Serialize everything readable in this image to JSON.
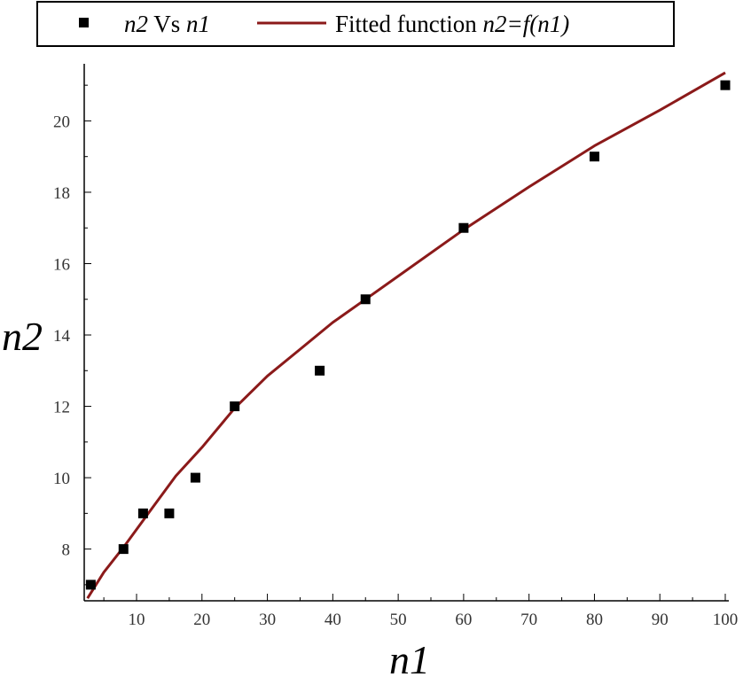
{
  "chart_data": {
    "type": "scatter",
    "xlabel": "n1",
    "ylabel": "n2",
    "xlim": [
      2,
      100
    ],
    "ylim": [
      6.55,
      21.6
    ],
    "xticks": [
      10,
      20,
      30,
      40,
      50,
      60,
      70,
      80,
      90,
      100
    ],
    "yticks": [
      8,
      10,
      12,
      14,
      16,
      18,
      20
    ],
    "grid": false,
    "legend_position": "top",
    "legend": {
      "points": {
        "symbol_label": "n2",
        "middle": " Vs ",
        "second": "n1"
      },
      "line": {
        "prefix": "Fitted function ",
        "formula": "n2=f(n1)"
      }
    },
    "series": [
      {
        "name": "n2 Vs n1",
        "kind": "points",
        "color": "#000000",
        "x": [
          3,
          8,
          11,
          15,
          19,
          25,
          38,
          45,
          60,
          80,
          100
        ],
        "y": [
          7,
          8,
          9,
          9,
          10,
          12,
          13,
          15,
          17,
          19,
          21
        ]
      },
      {
        "name": "Fitted function n2=f(n1)",
        "kind": "line",
        "color": "#8B1A1A",
        "x": [
          2.5,
          5,
          8,
          12,
          16,
          20,
          25,
          30,
          35,
          40,
          45,
          50,
          60,
          70,
          80,
          90,
          100
        ],
        "y": [
          6.62,
          7.35,
          8.05,
          9.05,
          10.05,
          10.85,
          11.95,
          12.85,
          13.6,
          14.35,
          15.0,
          15.65,
          16.95,
          18.15,
          19.3,
          20.3,
          21.35
        ]
      }
    ]
  }
}
